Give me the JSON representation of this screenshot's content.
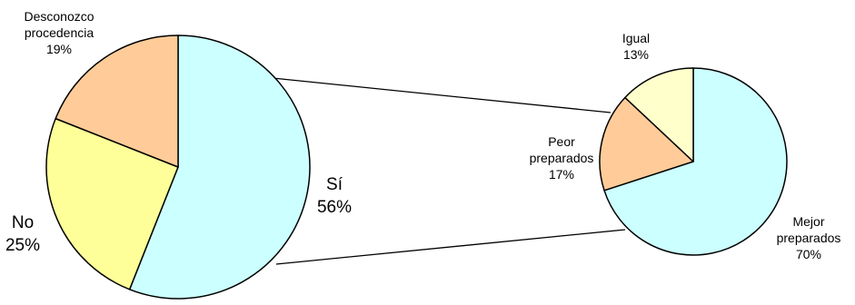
{
  "chart_data": [
    {
      "type": "pie",
      "slices": [
        {
          "label": "Sí",
          "value": 56,
          "value_label": "56%",
          "color": "#CCFFFF"
        },
        {
          "label": "No",
          "value": 25,
          "value_label": "25%",
          "color": "#FFFF99"
        },
        {
          "label": "Desconozco procedencia",
          "label_lines": [
            "Desconozco",
            "procedencia"
          ],
          "value": 19,
          "value_label": "19%",
          "color": "#FFCC99"
        }
      ]
    },
    {
      "type": "pie",
      "breakdown_of": "Sí",
      "slices": [
        {
          "label": "Mejor preparados",
          "label_lines": [
            "Mejor",
            "preparados"
          ],
          "value": 70,
          "value_label": "70%",
          "color": "#CCFFFF"
        },
        {
          "label": "Peor preparados",
          "label_lines": [
            "Peor",
            "preparados"
          ],
          "value": 17,
          "value_label": "17%",
          "color": "#FFCC99"
        },
        {
          "label": "Igual",
          "value": 13,
          "value_label": "13%",
          "color": "#FFFFCC"
        }
      ]
    }
  ]
}
